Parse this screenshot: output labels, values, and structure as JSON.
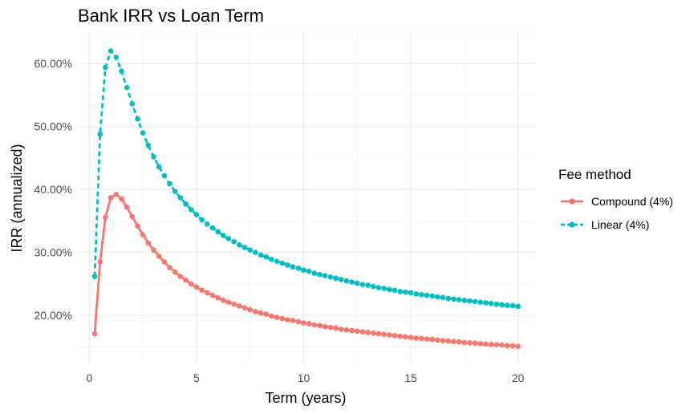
{
  "chart_data": {
    "type": "line",
    "title": "Bank IRR vs Loan Term",
    "xlabel": "Term (years)",
    "ylabel": "IRR (annualized)",
    "xlim": [
      -0.5,
      20.8
    ],
    "ylim": [
      12.5,
      65.0
    ],
    "x_ticks": [
      0,
      5,
      10,
      15,
      20
    ],
    "x_tick_labels": [
      "0",
      "5",
      "10",
      "15",
      "20"
    ],
    "y_ticks": [
      20,
      30,
      40,
      50,
      60
    ],
    "y_tick_labels": [
      "20.00%",
      "30.00%",
      "40.00%",
      "50.00%",
      "60.00%"
    ],
    "grid": true,
    "legend": {
      "title": "Fee method",
      "position": "right"
    },
    "series": [
      {
        "name": "Compound (4%)",
        "color": "#F8766D",
        "line_style": "solid",
        "x": [
          0.25,
          0.5,
          0.75,
          1,
          1.25,
          1.5,
          1.75,
          2,
          2.25,
          2.5,
          2.75,
          3,
          3.25,
          3.5,
          3.75,
          4,
          4.25,
          4.5,
          4.75,
          5,
          5.25,
          5.5,
          5.75,
          6,
          6.25,
          6.5,
          6.75,
          7,
          7.25,
          7.5,
          7.75,
          8,
          8.25,
          8.5,
          8.75,
          9,
          9.25,
          9.5,
          9.75,
          10,
          10.25,
          10.5,
          10.75,
          11,
          11.25,
          11.5,
          11.75,
          12,
          12.25,
          12.5,
          12.75,
          13,
          13.25,
          13.5,
          13.75,
          14,
          14.25,
          14.5,
          14.75,
          15,
          15.25,
          15.5,
          15.75,
          16,
          16.25,
          16.5,
          16.75,
          17,
          17.25,
          17.5,
          17.75,
          18,
          18.25,
          18.5,
          18.75,
          19,
          19.25,
          19.5,
          19.75,
          20
        ],
        "y": [
          17.1,
          28.5,
          35.6,
          38.7,
          39.2,
          38.5,
          37.2,
          35.7,
          34.2,
          32.8,
          31.5,
          30.4,
          29.4,
          28.5,
          27.6,
          26.9,
          26.2,
          25.6,
          25.0,
          24.5,
          24.0,
          23.6,
          23.2,
          22.8,
          22.4,
          22.1,
          21.8,
          21.5,
          21.2,
          20.9,
          20.6,
          20.4,
          20.2,
          19.9,
          19.7,
          19.5,
          19.3,
          19.2,
          19.0,
          18.8,
          18.7,
          18.5,
          18.4,
          18.2,
          18.1,
          18.0,
          17.8,
          17.7,
          17.6,
          17.5,
          17.4,
          17.3,
          17.2,
          17.1,
          17.0,
          16.9,
          16.8,
          16.7,
          16.6,
          16.5,
          16.4,
          16.35,
          16.25,
          16.2,
          16.1,
          16.0,
          15.95,
          15.85,
          15.8,
          15.7,
          15.65,
          15.6,
          15.5,
          15.45,
          15.4,
          15.35,
          15.3,
          15.2,
          15.15,
          15.1
        ]
      },
      {
        "name": "Linear (4%)",
        "color": "#00BFC4",
        "line_style": "dashed",
        "x": [
          0.25,
          0.5,
          0.75,
          1,
          1.25,
          1.5,
          1.75,
          2,
          2.25,
          2.5,
          2.75,
          3,
          3.25,
          3.5,
          3.75,
          4,
          4.25,
          4.5,
          4.75,
          5,
          5.25,
          5.5,
          5.75,
          6,
          6.25,
          6.5,
          6.75,
          7,
          7.25,
          7.5,
          7.75,
          8,
          8.25,
          8.5,
          8.75,
          9,
          9.25,
          9.5,
          9.75,
          10,
          10.25,
          10.5,
          10.75,
          11,
          11.25,
          11.5,
          11.75,
          12,
          12.25,
          12.5,
          12.75,
          13,
          13.25,
          13.5,
          13.75,
          14,
          14.25,
          14.5,
          14.75,
          15,
          15.25,
          15.5,
          15.75,
          16,
          16.25,
          16.5,
          16.75,
          17,
          17.25,
          17.5,
          17.75,
          18,
          18.25,
          18.5,
          18.75,
          19,
          19.25,
          19.5,
          19.75,
          20
        ],
        "y": [
          26.2,
          48.8,
          59.4,
          62.0,
          61.0,
          58.8,
          56.2,
          53.6,
          51.2,
          49.0,
          47.0,
          45.2,
          43.6,
          42.2,
          40.9,
          39.7,
          38.7,
          37.7,
          36.8,
          36.0,
          35.2,
          34.5,
          33.9,
          33.3,
          32.7,
          32.2,
          31.7,
          31.2,
          30.8,
          30.4,
          30.0,
          29.6,
          29.3,
          28.9,
          28.6,
          28.3,
          28.0,
          27.7,
          27.5,
          27.2,
          27.0,
          26.7,
          26.5,
          26.3,
          26.1,
          25.9,
          25.7,
          25.5,
          25.3,
          25.1,
          24.9,
          24.8,
          24.6,
          24.4,
          24.3,
          24.1,
          24.0,
          23.8,
          23.7,
          23.6,
          23.4,
          23.3,
          23.2,
          23.1,
          22.95,
          22.85,
          22.7,
          22.6,
          22.5,
          22.4,
          22.3,
          22.2,
          22.1,
          22.0,
          21.9,
          21.8,
          21.7,
          21.6,
          21.55,
          21.45
        ]
      }
    ]
  }
}
